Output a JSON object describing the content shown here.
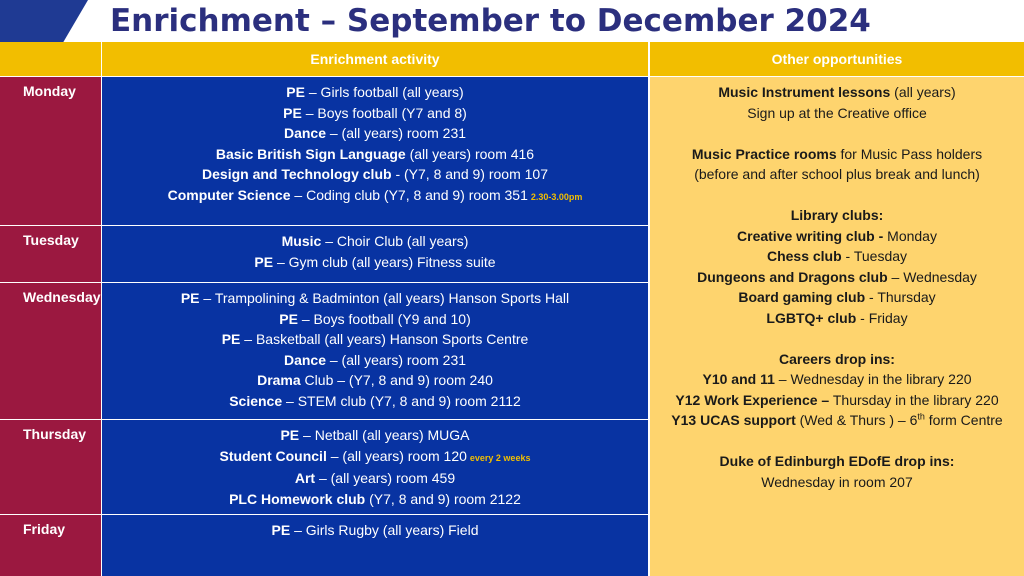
{
  "title": "Enrichment – September to December 2024",
  "colors": {
    "header": "#f2be00",
    "day_column": "#9b1840",
    "activity_column": "#0833a2",
    "other_column": "#fed46e",
    "title": "#2b2f7e"
  },
  "headers": {
    "activity": "Enrichment activity",
    "other": "Other opportunities"
  },
  "days": [
    {
      "name": "Monday",
      "activities": [
        {
          "bold": "PE",
          "text": " – Girls football (all years)"
        },
        {
          "bold": "PE",
          "text": " – Boys football (Y7 and 8)"
        },
        {
          "bold": "Dance",
          "text": " – (all years) room 231"
        },
        {
          "bold": "Basic British Sign Language",
          "text": " (all years) room 416"
        },
        {
          "bold": "Design and Technology club",
          "text": " - (Y7, 8 and 9) room 107"
        },
        {
          "bold": "Computer Science",
          "text": " – Coding club (Y7, 8 and 9) room 351",
          "note": "2.30-3.00pm"
        }
      ]
    },
    {
      "name": "Tuesday",
      "activities": [
        {
          "bold": "Music",
          "text": " – Choir Club (all years)"
        },
        {
          "bold": "PE",
          "text": " – Gym club (all years) Fitness suite"
        }
      ]
    },
    {
      "name": "Wednesday",
      "activities": [
        {
          "bold": "PE",
          "text": " – Trampolining & Badminton (all years) Hanson Sports Hall"
        },
        {
          "bold": "PE",
          "text": " – Boys football (Y9 and 10)"
        },
        {
          "bold": "PE",
          "text": " – Basketball (all years) Hanson Sports Centre"
        },
        {
          "bold": "Dance",
          "text": " – (all years) room 231"
        },
        {
          "bold": "Drama",
          "text": " Club – (Y7, 8 and 9) room 240"
        },
        {
          "bold": "Science",
          "text": " – STEM club (Y7, 8 and 9) room 2112"
        }
      ]
    },
    {
      "name": "Thursday",
      "activities": [
        {
          "bold": "PE",
          "text": " – Netball (all years) MUGA"
        },
        {
          "bold": "Student Council",
          "text": " – (all years) room 120",
          "note": "every 2 weeks"
        },
        {
          "bold": "Art",
          "text": " – (all years) room 459"
        },
        {
          "bold": "PLC Homework club",
          "text": " (Y7, 8 and 9) room 2122"
        }
      ]
    },
    {
      "name": "Friday",
      "activities": [
        {
          "bold": "PE",
          "text": " – Girls Rugby (all years) Field"
        }
      ]
    }
  ],
  "other": {
    "music_lessons": {
      "bold": "Music Instrument lessons",
      "text": " (all years)"
    },
    "music_signup": "Sign up at the Creative office",
    "practice_rooms": {
      "bold": "Music Practice rooms",
      "text": " for Music Pass holders"
    },
    "practice_times": "(before and after school plus break and lunch)",
    "library_heading": "Library clubs:",
    "library_clubs": [
      {
        "bold": "Creative writing club -",
        "text": " Monday"
      },
      {
        "bold": "Chess club",
        "text": " - Tuesday"
      },
      {
        "bold": "Dungeons and Dragons club",
        "text": " – Wednesday"
      },
      {
        "bold": "Board gaming club",
        "text": " - Thursday"
      },
      {
        "bold": "LGBTQ+ club",
        "text": " - Friday"
      }
    ],
    "careers_heading": "Careers drop ins:",
    "careers": [
      {
        "bold": "Y10 and 11",
        "text": " – Wednesday in the library 220"
      },
      {
        "bold": "Y12 Work Experience –",
        "text": " Thursday in the library 220"
      }
    ],
    "ucas": {
      "bold": "Y13 UCAS support",
      "text": " (Wed & Thurs ) – 6",
      "sup": "th",
      "tail": " form Centre"
    },
    "dofe_heading": "Duke of Edinburgh EDofE drop ins:",
    "dofe_text": "Wednesday in room 207"
  }
}
